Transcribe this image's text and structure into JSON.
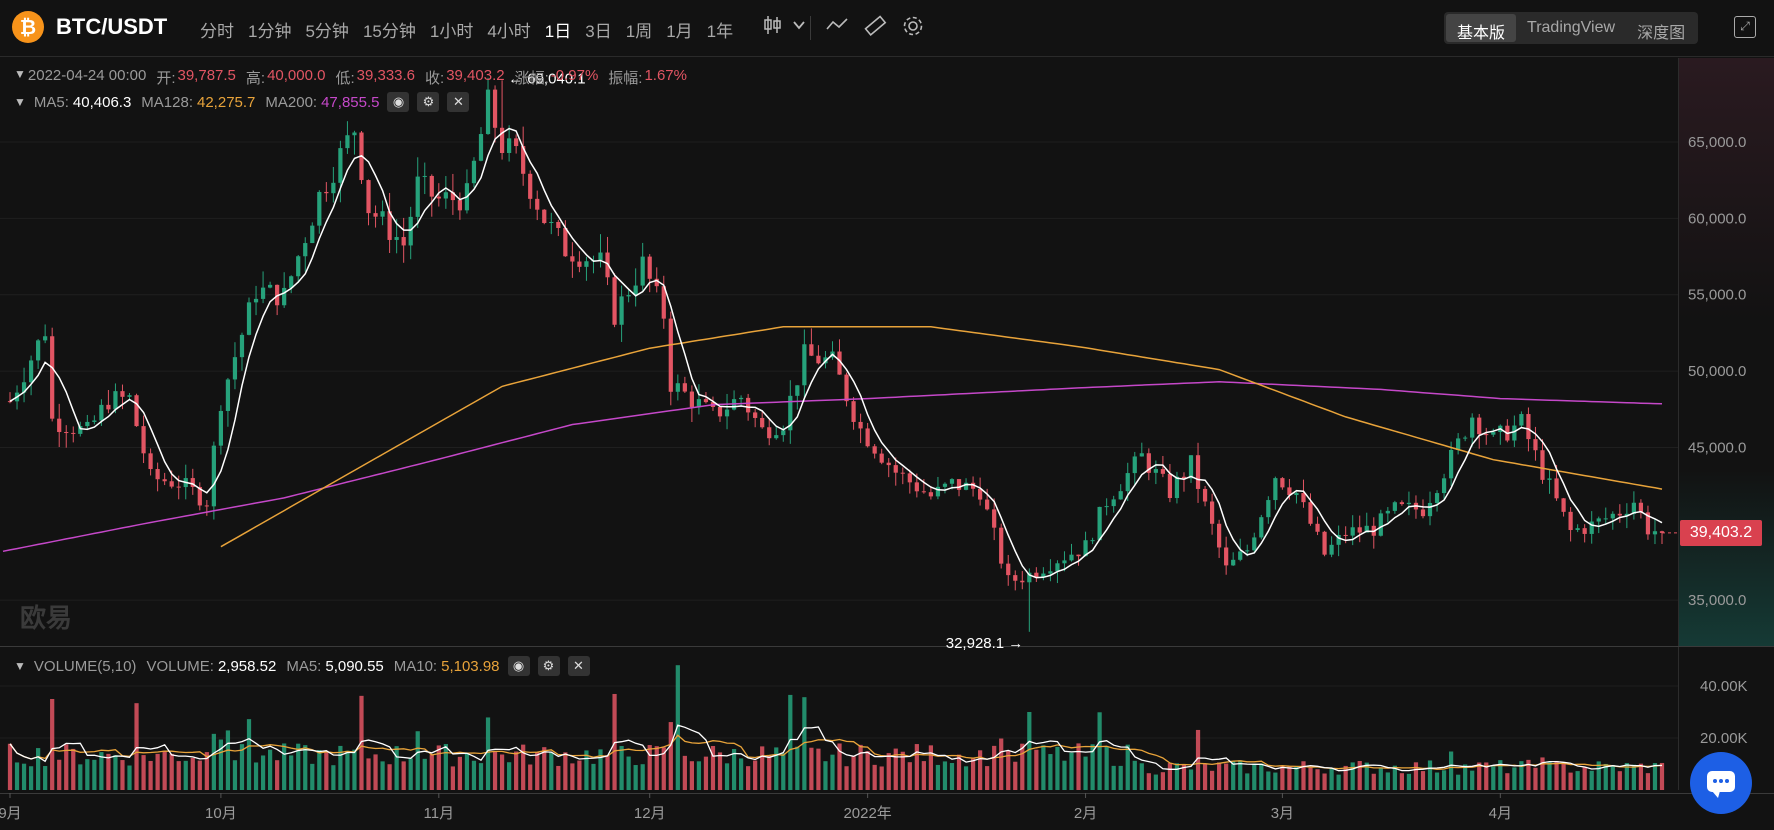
{
  "header": {
    "coin_symbol": "₿",
    "pair": "BTC/USDT",
    "intervals": [
      "分时",
      "1分钟",
      "5分钟",
      "15分钟",
      "1小时",
      "4小时",
      "1日",
      "3日",
      "1周",
      "1月",
      "1年"
    ],
    "active_interval": "1日",
    "modes": [
      "基本版",
      "TradingView",
      "深度图"
    ],
    "active_mode": "基本版",
    "icons": [
      "candlestick-type-icon",
      "chevron-down-icon",
      "line-draw-icon",
      "ruler-icon",
      "settings-gear-icon",
      "fullscreen-icon"
    ]
  },
  "ohlc": {
    "date": "2022-04-24 00:00",
    "open_label": "开:",
    "open": "39,787.5",
    "high_label": "高:",
    "high": "40,000.0",
    "low_label": "低:",
    "low": "39,333.6",
    "close_label": "收:",
    "close": "39,403.2",
    "change_label": "涨幅:",
    "change": "-0.97%",
    "amplitude_label": "振幅:",
    "amplitude": "1.67%"
  },
  "ma": {
    "ma5_label": "MA5:",
    "ma5": "40,406.3",
    "ma128_label": "MA128:",
    "ma128": "42,275.7",
    "ma200_label": "MA200:",
    "ma200": "47,855.5"
  },
  "volume": {
    "title": "VOLUME(5,10)",
    "volume_label": "VOLUME:",
    "volume": "2,958.52",
    "ma5_label": "MA5:",
    "ma5": "5,090.55",
    "ma10_label": "MA10:",
    "ma10": "5,103.98"
  },
  "current_price": "39,403.2",
  "watermark": "欧易",
  "colors": {
    "up": "#26a27b",
    "down": "#e25563",
    "ma5": "#ffffff",
    "ma128": "#e8a33a",
    "ma200": "#c548c9",
    "accent": "#1d5fe5"
  },
  "chart_data": {
    "type": "candlestick",
    "x_range": [
      "2021-09-01",
      "2022-04-24"
    ],
    "price_axis": {
      "ticks": [
        "65,000.0",
        "60,000.0",
        "55,000.0",
        "50,000.0",
        "45,000.0",
        "35,000.0"
      ],
      "ylim": [
        32000,
        70500
      ]
    },
    "volume_axis": {
      "ticks": [
        "40.00K",
        "20.00K"
      ],
      "ylim": [
        0,
        50000
      ]
    },
    "x_labels": [
      "9月",
      "10月",
      "11月",
      "12月",
      "2022年",
      "2月",
      "3月",
      "4月"
    ],
    "x_label_dates": [
      "2021-09-01",
      "2021-10-01",
      "2021-11-01",
      "2021-12-01",
      "2022-01-01",
      "2022-02-01",
      "2022-03-01",
      "2022-04-01"
    ],
    "annotations": [
      {
        "text": "69,040.1",
        "date": "2021-11-10",
        "value": 69040.1,
        "kind": "high"
      },
      {
        "text": "32,928.1",
        "date": "2022-01-24",
        "value": 32928.1,
        "kind": "low"
      }
    ],
    "close_keypoints": [
      [
        "2021-08-31",
        47100
      ],
      [
        "2021-09-03",
        49900
      ],
      [
        "2021-09-06",
        52700
      ],
      [
        "2021-09-07",
        46800
      ],
      [
        "2021-09-12",
        46000
      ],
      [
        "2021-09-15",
        48100
      ],
      [
        "2021-09-18",
        48200
      ],
      [
        "2021-09-21",
        43000
      ],
      [
        "2021-09-25",
        42700
      ],
      [
        "2021-09-29",
        41500
      ],
      [
        "2021-10-01",
        48100
      ],
      [
        "2021-10-06",
        55300
      ],
      [
        "2021-10-10",
        54900
      ],
      [
        "2021-10-15",
        61500
      ],
      [
        "2021-10-20",
        65900
      ],
      [
        "2021-10-22",
        60700
      ],
      [
        "2021-10-27",
        58300
      ],
      [
        "2021-10-29",
        62200
      ],
      [
        "2021-11-01",
        61200
      ],
      [
        "2021-11-05",
        61400
      ],
      [
        "2021-11-08",
        67500
      ],
      [
        "2021-11-10",
        64800
      ],
      [
        "2021-11-12",
        64100
      ],
      [
        "2021-11-16",
        60000
      ],
      [
        "2021-11-19",
        58000
      ],
      [
        "2021-11-24",
        57100
      ],
      [
        "2021-11-26",
        53700
      ],
      [
        "2021-11-30",
        57000
      ],
      [
        "2021-12-03",
        53700
      ],
      [
        "2021-12-04",
        49200
      ],
      [
        "2021-12-10",
        47100
      ],
      [
        "2021-12-14",
        48300
      ],
      [
        "2021-12-17",
        46100
      ],
      [
        "2021-12-20",
        46700
      ],
      [
        "2021-12-23",
        51000
      ],
      [
        "2021-12-27",
        50600
      ],
      [
        "2021-12-31",
        46200
      ],
      [
        "2022-01-05",
        43400
      ],
      [
        "2022-01-10",
        41800
      ],
      [
        "2022-01-13",
        42600
      ],
      [
        "2022-01-17",
        42200
      ],
      [
        "2022-01-21",
        36200
      ],
      [
        "2022-01-24",
        36700
      ],
      [
        "2022-01-28",
        37700
      ],
      [
        "2022-02-01",
        38500
      ],
      [
        "2022-02-04",
        41500
      ],
      [
        "2022-02-09",
        44400
      ],
      [
        "2022-02-13",
        42100
      ],
      [
        "2022-02-16",
        43900
      ],
      [
        "2022-02-21",
        37000
      ],
      [
        "2022-02-24",
        38300
      ],
      [
        "2022-02-28",
        43200
      ],
      [
        "2022-03-03",
        42000
      ],
      [
        "2022-03-07",
        38000
      ],
      [
        "2022-03-10",
        39400
      ],
      [
        "2022-03-14",
        39700
      ],
      [
        "2022-03-17",
        40900
      ],
      [
        "2022-03-21",
        41000
      ],
      [
        "2022-03-25",
        44300
      ],
      [
        "2022-03-28",
        47100
      ],
      [
        "2022-03-31",
        45500
      ],
      [
        "2022-04-04",
        46600
      ],
      [
        "2022-04-07",
        43400
      ],
      [
        "2022-04-11",
        39500
      ],
      [
        "2022-04-14",
        39900
      ],
      [
        "2022-04-18",
        40800
      ],
      [
        "2022-04-20",
        41500
      ],
      [
        "2022-04-22",
        39700
      ],
      [
        "2022-04-24",
        39403.2
      ]
    ],
    "ma128_keypoints": [
      [
        "2021-10-01",
        38500
      ],
      [
        "2021-10-20",
        43500
      ],
      [
        "2021-11-10",
        49000
      ],
      [
        "2021-12-01",
        51500
      ],
      [
        "2021-12-20",
        52900
      ],
      [
        "2022-01-10",
        52900
      ],
      [
        "2022-01-31",
        51600
      ],
      [
        "2022-02-20",
        50100
      ],
      [
        "2022-03-10",
        47000
      ],
      [
        "2022-03-31",
        44200
      ],
      [
        "2022-04-24",
        42275.7
      ]
    ],
    "ma200_keypoints": [
      [
        "2021-08-31",
        38200
      ],
      [
        "2021-09-20",
        40000
      ],
      [
        "2021-10-10",
        41700
      ],
      [
        "2021-10-30",
        44000
      ],
      [
        "2021-11-20",
        46500
      ],
      [
        "2021-12-10",
        47800
      ],
      [
        "2022-01-01",
        48200
      ],
      [
        "2022-01-31",
        48900
      ],
      [
        "2022-02-20",
        49300
      ],
      [
        "2022-03-15",
        48800
      ],
      [
        "2022-04-01",
        48200
      ],
      [
        "2022-04-24",
        47855.5
      ]
    ],
    "volume_note": "daily volume bars, typical 8K–15K, spikes ~35K (Sep 7) and ~48K (Dec 4)"
  }
}
